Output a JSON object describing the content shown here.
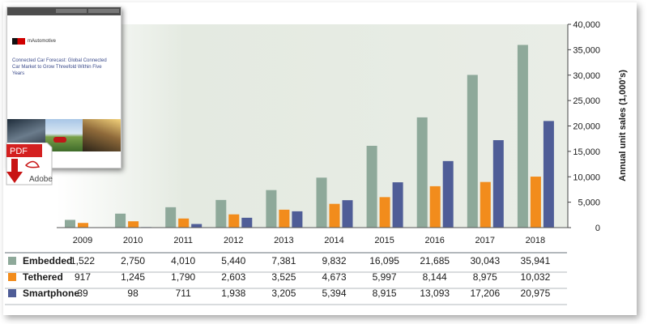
{
  "thumbnail": {
    "brand": "mAutomotive",
    "title": "Connected Car Forecast: Global Connected Car Market to Grow Threefold Within Five Years",
    "pdf_label": "PDF",
    "adobe_label": "Adobe"
  },
  "colors": {
    "embedded": "#8ea99a",
    "tethered": "#f28c1c",
    "smartphone": "#4f5d97",
    "plot_bg": "#eef1eb"
  },
  "chart_data": {
    "type": "bar",
    "categories": [
      "2009",
      "2010",
      "2011",
      "2012",
      "2013",
      "2014",
      "2015",
      "2016",
      "2017",
      "2018"
    ],
    "series": [
      {
        "name": "Embedded",
        "values": [
          1522,
          2750,
          4010,
          5440,
          7381,
          9832,
          16095,
          21685,
          30043,
          35941
        ]
      },
      {
        "name": "Tethered",
        "values": [
          917,
          1245,
          1790,
          2603,
          3525,
          4673,
          5997,
          8144,
          8975,
          10032
        ]
      },
      {
        "name": "Smartphone",
        "values": [
          39,
          98,
          711,
          1938,
          3205,
          5394,
          8915,
          13093,
          17206,
          20975
        ]
      }
    ],
    "value_labels": {
      "Embedded": [
        "1,522",
        "2,750",
        "4,010",
        "5,440",
        "7,381",
        "9,832",
        "16,095",
        "21,685",
        "30,043",
        "35,941"
      ],
      "Tethered": [
        "917",
        "1,245",
        "1,790",
        "2,603",
        "3,525",
        "4,673",
        "5,997",
        "8,144",
        "8,975",
        "10,032"
      ],
      "Smartphone": [
        "39",
        "98",
        "711",
        "1,938",
        "3,205",
        "5,394",
        "8,915",
        "13,093",
        "17,206",
        "20,975"
      ]
    },
    "ylabel": "Annual unit sales (1,000's)",
    "ylim": [
      0,
      40000
    ],
    "yticks": [
      0,
      5000,
      10000,
      15000,
      20000,
      25000,
      30000,
      35000,
      40000
    ],
    "ytick_labels": [
      "0",
      "5,000",
      "10,000",
      "15,000",
      "20,000",
      "25,000",
      "30,000",
      "35,000",
      "40,000"
    ],
    "grid": false,
    "legend": "table-below"
  }
}
